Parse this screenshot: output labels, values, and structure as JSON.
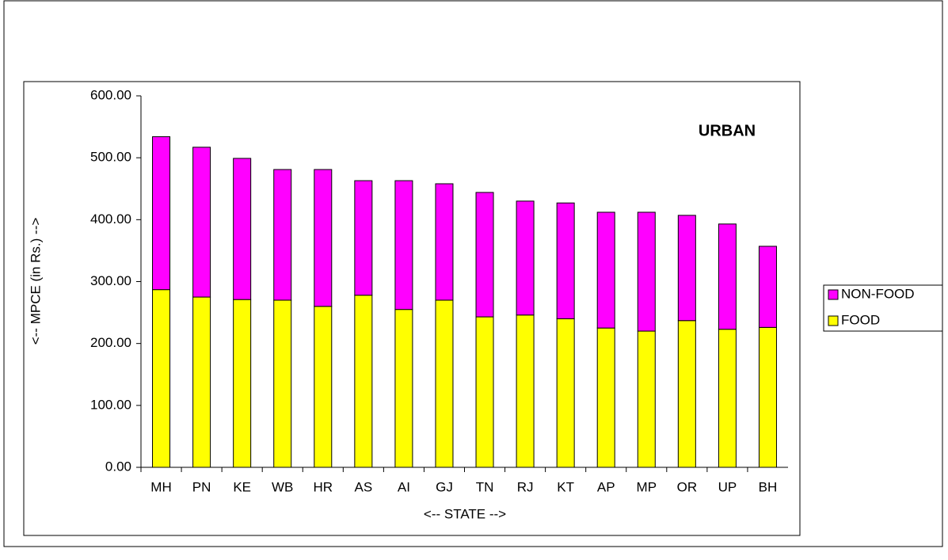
{
  "chart_data": {
    "type": "stacked_bar",
    "title": "URBAN",
    "x_label": "<-- STATE -->",
    "y_label": "<-- MPCE (in Rs.) -->",
    "categories": [
      "MH",
      "PN",
      "KE",
      "WB",
      "HR",
      "AS",
      "AI",
      "GJ",
      "TN",
      "RJ",
      "KT",
      "AP",
      "MP",
      "OR",
      "UP",
      "BH"
    ],
    "series": [
      {
        "name": "FOOD",
        "color": "#ffff00",
        "values": [
          287,
          275,
          271,
          270,
          260,
          278,
          255,
          270,
          243,
          246,
          240,
          225,
          220,
          237,
          223,
          226
        ]
      },
      {
        "name": "NON-FOOD",
        "color": "#ff00ff",
        "values": [
          247,
          242,
          228,
          211,
          221,
          185,
          208,
          188,
          201,
          184,
          187,
          187,
          192,
          170,
          170,
          131
        ]
      }
    ],
    "ylim": [
      0,
      600
    ],
    "yticks": [
      {
        "value": 0,
        "label": "0.00"
      },
      {
        "value": 100,
        "label": "100.00"
      },
      {
        "value": 200,
        "label": "200.00"
      },
      {
        "value": 300,
        "label": "300.00"
      },
      {
        "value": 400,
        "label": "400.00"
      },
      {
        "value": 500,
        "label": "500.00"
      },
      {
        "value": 600,
        "label": "600.00"
      }
    ],
    "legend": "right"
  }
}
